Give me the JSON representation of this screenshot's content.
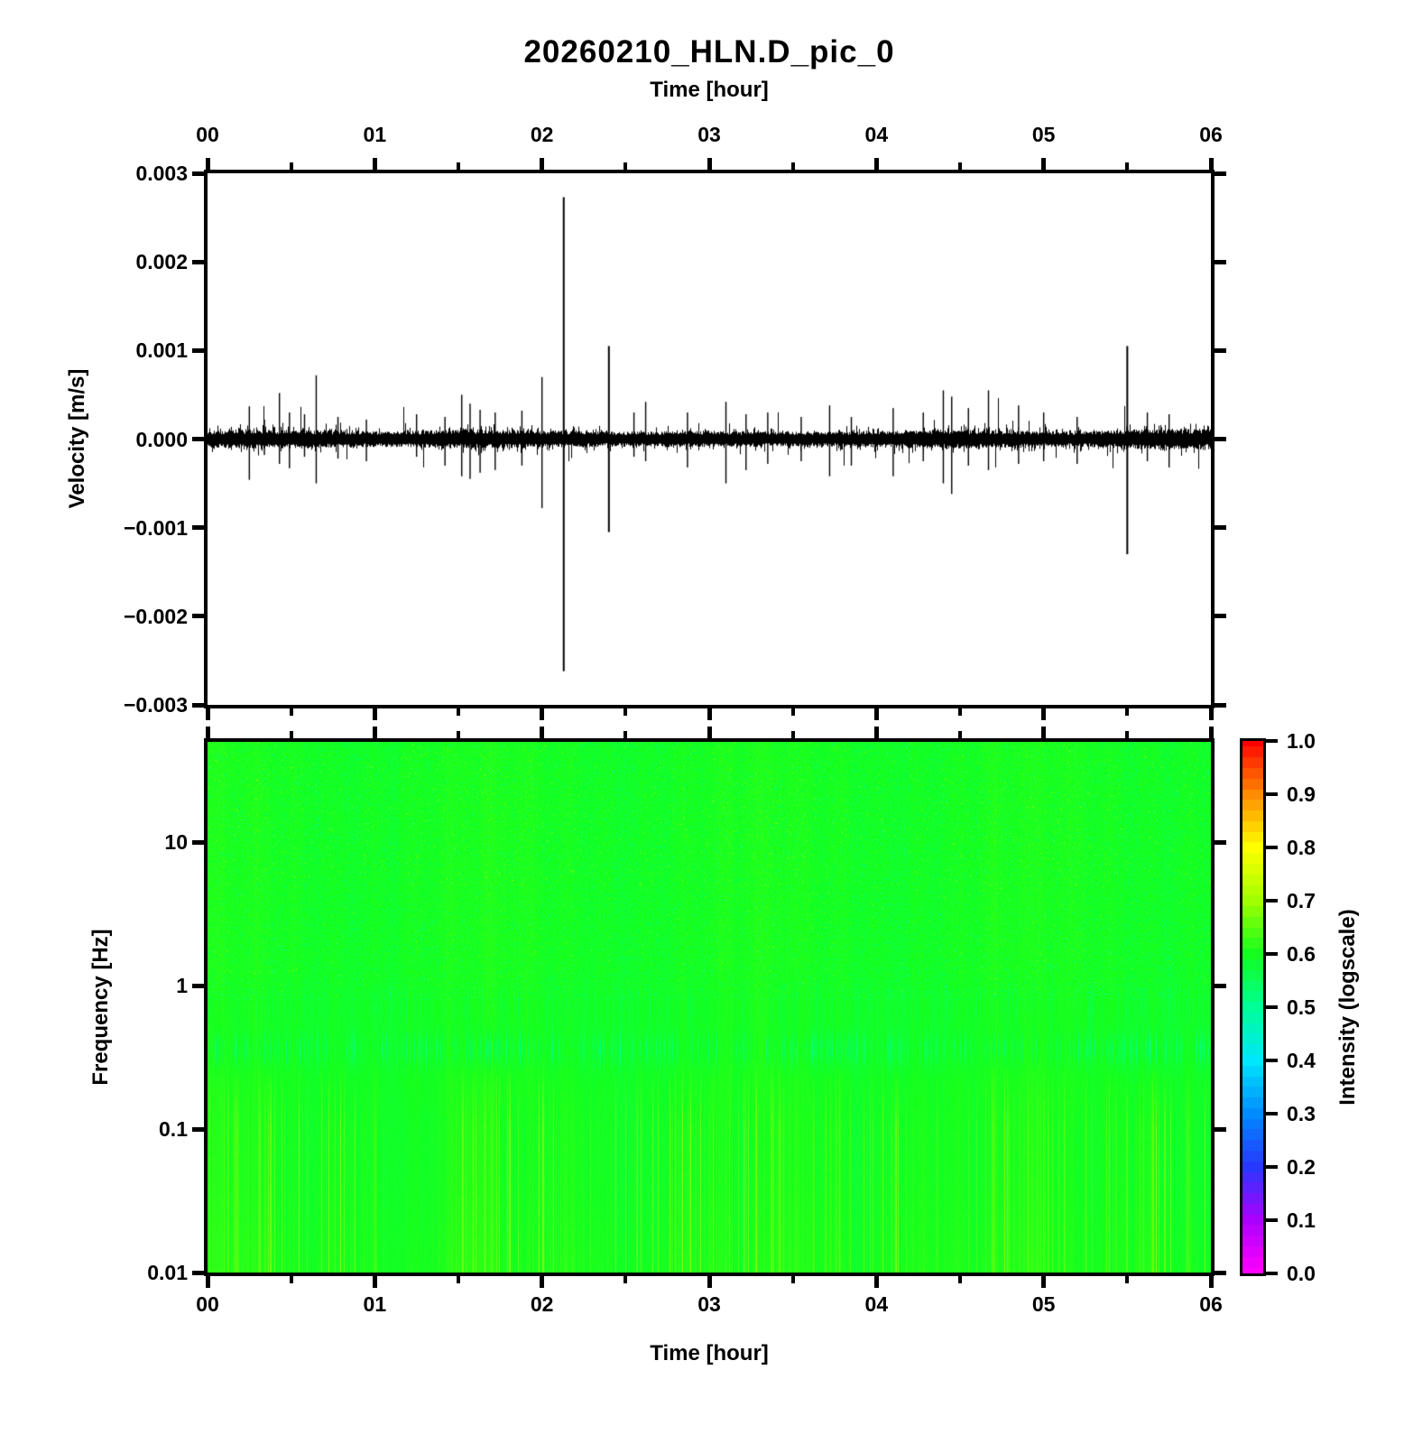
{
  "title": "20260210_HLN.D_pic_0",
  "axes": {
    "time_label_top": "Time [hour]",
    "time_label_bottom": "Time [hour]",
    "velocity_label": "Velocity [m/s]",
    "frequency_label": "Frequency [Hz]",
    "colorbar_label": "Intensity (logscale)",
    "hour_tick_values": [
      0,
      1,
      2,
      3,
      4,
      5,
      6
    ],
    "hour_tick_labels": [
      "00",
      "01",
      "02",
      "03",
      "04",
      "05",
      "06"
    ],
    "hour_minor_step": 0.5,
    "velocity_tick_values": [
      0.003,
      0.002,
      0.001,
      0.0,
      -0.001,
      -0.002,
      -0.003
    ],
    "velocity_tick_labels": [
      "0.003",
      "0.002",
      "0.001",
      "0.000",
      "−0.001",
      "−0.002",
      "−0.003"
    ],
    "frequency_tick_values": [
      10,
      1,
      0.1,
      0.01
    ],
    "frequency_tick_labels": [
      "10",
      "1",
      "0.1",
      "0.01"
    ],
    "colorbar_tick_values": [
      1.0,
      0.9,
      0.8,
      0.7,
      0.6,
      0.5,
      0.4,
      0.3,
      0.2,
      0.1,
      0.0
    ],
    "colorbar_tick_labels": [
      "1.0",
      "0.9",
      "0.8",
      "0.7",
      "0.6",
      "0.5",
      "0.4",
      "0.3",
      "0.2",
      "0.1",
      "0.0"
    ]
  },
  "chart_data": [
    {
      "type": "line",
      "subtype": "seismic-waveform-trace",
      "title": "20260210_HLN.D_pic_0",
      "xlabel": "Time [hour]",
      "ylabel": "Velocity [m/s]",
      "xlim": [
        0,
        6
      ],
      "ylim": [
        -0.003,
        0.003
      ],
      "grid": false,
      "line_color": "#000000",
      "noise": {
        "seed": 1337,
        "base_amplitude": 0.0001,
        "envelope": [
          [
            0,
            1.05
          ],
          [
            0.25,
            1.15
          ],
          [
            0.5,
            1.1
          ],
          [
            0.75,
            1.05
          ],
          [
            1.0,
            0.92
          ],
          [
            1.3,
            1.02
          ],
          [
            1.5,
            1.15
          ],
          [
            1.75,
            1.1
          ],
          [
            2.0,
            1.05
          ],
          [
            2.3,
            0.95
          ],
          [
            2.6,
            0.9
          ],
          [
            3.0,
            1.0
          ],
          [
            3.3,
            0.95
          ],
          [
            3.6,
            0.88
          ],
          [
            3.9,
            0.95
          ],
          [
            4.2,
            1.1
          ],
          [
            4.5,
            1.15
          ],
          [
            4.8,
            1.05
          ],
          [
            5.1,
            0.95
          ],
          [
            5.35,
            1.0
          ],
          [
            5.6,
            1.2
          ],
          [
            5.8,
            1.25
          ],
          [
            6.0,
            1.15
          ]
        ]
      },
      "spike_unit": 0.001,
      "spikes": [
        [
          0.25,
          0.37,
          0.46
        ],
        [
          0.34,
          0.22,
          0.18
        ],
        [
          0.43,
          0.52,
          0.28
        ],
        [
          0.49,
          0.3,
          0.33
        ],
        [
          0.58,
          0.28,
          0.2
        ],
        [
          0.65,
          0.72,
          0.5
        ],
        [
          0.78,
          0.25,
          0.22
        ],
        [
          0.95,
          0.22,
          0.25
        ],
        [
          1.25,
          0.28,
          0.2
        ],
        [
          1.42,
          0.25,
          0.3
        ],
        [
          1.52,
          0.5,
          0.42
        ],
        [
          1.57,
          0.4,
          0.45
        ],
        [
          1.63,
          0.33,
          0.38
        ],
        [
          1.72,
          0.3,
          0.35
        ],
        [
          1.88,
          0.32,
          0.3
        ],
        [
          2.0,
          0.7,
          0.78
        ],
        [
          2.13,
          2.73,
          2.62
        ],
        [
          2.4,
          1.05,
          1.05
        ],
        [
          2.55,
          0.3,
          0.2
        ],
        [
          2.62,
          0.42,
          0.25
        ],
        [
          2.87,
          0.3,
          0.32
        ],
        [
          3.1,
          0.42,
          0.5
        ],
        [
          3.22,
          0.28,
          0.35
        ],
        [
          3.35,
          0.3,
          0.28
        ],
        [
          3.55,
          0.25,
          0.25
        ],
        [
          3.72,
          0.38,
          0.42
        ],
        [
          3.85,
          0.25,
          0.3
        ],
        [
          4.1,
          0.35,
          0.42
        ],
        [
          4.28,
          0.3,
          0.25
        ],
        [
          4.4,
          0.55,
          0.5
        ],
        [
          4.45,
          0.48,
          0.62
        ],
        [
          4.55,
          0.35,
          0.3
        ],
        [
          4.67,
          0.55,
          0.35
        ],
        [
          4.85,
          0.38,
          0.28
        ],
        [
          5.0,
          0.3,
          0.25
        ],
        [
          5.2,
          0.25,
          0.28
        ],
        [
          5.5,
          1.05,
          1.3
        ],
        [
          5.62,
          0.3,
          0.25
        ],
        [
          5.75,
          0.28,
          0.32
        ]
      ]
    },
    {
      "type": "heatmap",
      "subtype": "spectrogram",
      "xlabel": "Time [hour]",
      "ylabel": "Frequency [Hz]",
      "xlim": [
        0,
        6
      ],
      "ylim": [
        0.01,
        50
      ],
      "yscale": "log",
      "colorbar": {
        "label": "Intensity (logscale)",
        "range": [
          0.0,
          1.0
        ],
        "tick_step": 0.1,
        "colormap_stops": [
          [
            0.0,
            "#ff00ff"
          ],
          [
            0.1,
            "#aa00ff"
          ],
          [
            0.2,
            "#2838ff"
          ],
          [
            0.3,
            "#008cff"
          ],
          [
            0.4,
            "#00e6fa"
          ],
          [
            0.5,
            "#00ff96"
          ],
          [
            0.6,
            "#14ff1e"
          ],
          [
            0.7,
            "#a0ff00"
          ],
          [
            0.8,
            "#ffff00"
          ],
          [
            0.9,
            "#ff8c00"
          ],
          [
            1.0,
            "#ff0000"
          ]
        ]
      },
      "seed": 777,
      "intensity_profile_log10f": [
        [
          1.7,
          0.6
        ],
        [
          1.6,
          0.632
        ],
        [
          1.45,
          0.655
        ],
        [
          1.2,
          0.675
        ],
        [
          1.0,
          0.69
        ],
        [
          0.7,
          0.705
        ],
        [
          0.4,
          0.72
        ],
        [
          0.1,
          0.73
        ],
        [
          -0.15,
          0.735
        ],
        [
          -0.35,
          0.728
        ],
        [
          -0.45,
          0.715
        ],
        [
          -0.62,
          0.755
        ],
        [
          -0.85,
          0.775
        ],
        [
          -1.2,
          0.78
        ],
        [
          -1.6,
          0.782
        ],
        [
          -2.0,
          0.786
        ]
      ],
      "bands": {
        "microseism_green_streaks": {
          "center_log10f": -0.44,
          "sigma": 0.085,
          "max_dip": 0.11
        },
        "secondary_streaks": {
          "center_log10f": -0.15,
          "sigma": 0.12,
          "max_dip": 0.05
        },
        "speckle_highfreq_min_log10f": -0.1,
        "bottom_yellow_stripes": {
          "start_log10f": -0.5,
          "full_log10f": -1.0,
          "max_boost": 0.075
        }
      }
    }
  ]
}
